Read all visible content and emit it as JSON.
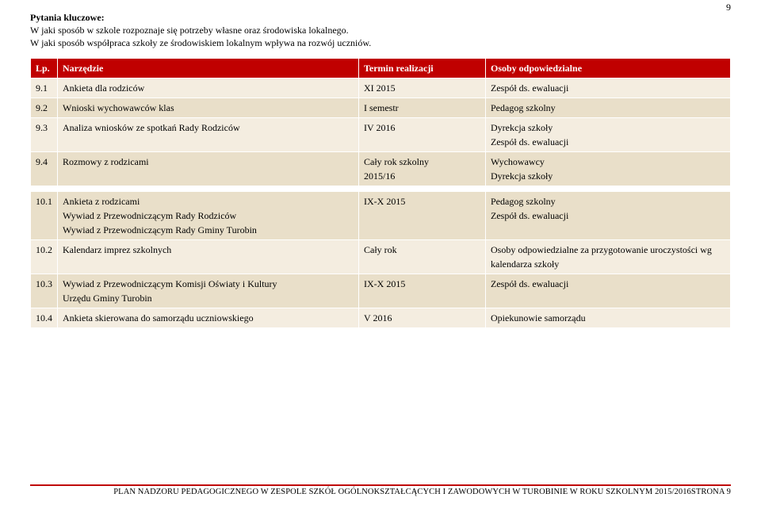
{
  "page_number": "9",
  "intro": {
    "heading": "Pytania kluczowe:",
    "line1": "W jaki sposób w szkole rozpoznaje się potrzeby własne oraz środowiska lokalnego.",
    "line2": "W jaki sposób współpraca szkoły ze środowiskiem lokalnym wpływa na rozwój uczniów."
  },
  "table1": {
    "header": {
      "lp": "Lp.",
      "tool": "Narzędzie",
      "term": "Termin realizacji",
      "resp": "Osoby odpowiedzialne"
    },
    "rows": [
      {
        "lp": "9.1",
        "tool": "Ankieta dla rodziców",
        "term": "XI 2015",
        "resp": "Zespół ds. ewaluacji"
      },
      {
        "lp": "9.2",
        "tool": "Wnioski wychowawców klas",
        "term": "I semestr",
        "resp": "Pedagog szkolny"
      },
      {
        "lp": "9.3",
        "tool": "Analiza wniosków ze spotkań Rady Rodziców",
        "term": "IV 2016",
        "resp": "Dyrekcja szkoły\nZespół ds. ewaluacji"
      },
      {
        "lp": "9.4",
        "tool": "Rozmowy z rodzicami",
        "term": "Cały rok szkolny\n2015/16",
        "resp": "Wychowawcy\nDyrekcja szkoły"
      }
    ]
  },
  "table2": {
    "rows": [
      {
        "lp": "10.1",
        "tool": "Ankieta z rodzicami\nWywiad z Przewodniczącym Rady Rodziców\nWywiad z Przewodniczącym Rady Gminy Turobin",
        "term": "IX-X 2015",
        "resp": "Pedagog szkolny\nZespół ds. ewaluacji"
      },
      {
        "lp": "10.2",
        "tool": "Kalendarz imprez szkolnych",
        "term": "Cały rok",
        "resp": "Osoby odpowiedzialne za przygotowanie uroczystości wg\nkalendarza szkoły"
      },
      {
        "lp": "10.3",
        "tool": "Wywiad z Przewodniczącym Komisji Oświaty i Kultury\nUrzędu Gminy Turobin",
        "term": "IX-X 2015",
        "resp": "Zespół ds. ewaluacji"
      },
      {
        "lp": "10.4",
        "tool": "Ankieta skierowana do samorządu uczniowskiego",
        "term": "V 2016",
        "resp": "Opiekunowie samorządu"
      }
    ]
  },
  "footer": "PLAN NADZORU PEDAGOGICZNEGO W ZESPOLE SZKÓŁ OGÓLNOKSZTAŁCĄCYCH I ZAWODOWYCH W TUROBINIE W ROKU SZKOLNYM 2015/2016STRONA 9",
  "colors": {
    "header_bg": "#c00000",
    "row_even": "#e9dfc9",
    "row_odd": "#f4ede0",
    "border": "#ffffff",
    "footer_rule": "#c00000"
  }
}
